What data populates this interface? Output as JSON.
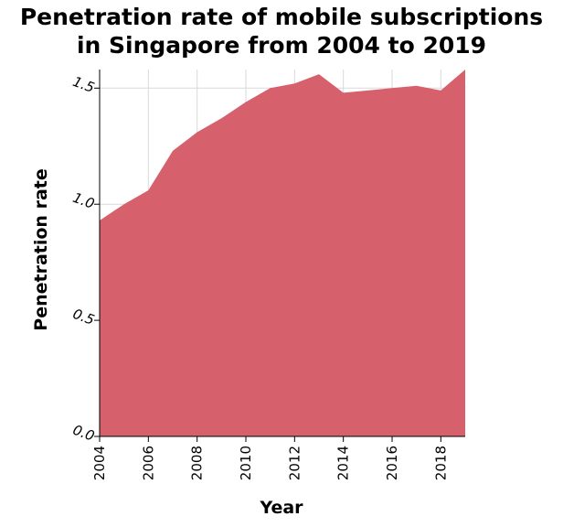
{
  "chart_data": {
    "type": "area",
    "title": "Penetration rate of mobile subscriptions in Singapore from 2004 to 2019",
    "title_lines": [
      "Penetration rate of mobile subscriptions",
      "in Singapore from 2004 to 2019"
    ],
    "xlabel": "Year",
    "ylabel": "Penetration rate",
    "x": [
      2004,
      2005,
      2006,
      2007,
      2008,
      2009,
      2010,
      2011,
      2012,
      2013,
      2014,
      2015,
      2016,
      2017,
      2018,
      2019
    ],
    "series": [
      {
        "values": [
          0.93,
          1.0,
          1.06,
          1.23,
          1.31,
          1.37,
          1.44,
          1.5,
          1.52,
          1.56,
          1.48,
          1.49,
          1.5,
          1.51,
          1.49,
          1.58
        ]
      }
    ],
    "xlim": [
      2004,
      2019
    ],
    "ylim": [
      0.0,
      1.58
    ],
    "xticks": [
      "2004",
      "2006",
      "2008",
      "2010",
      "2012",
      "2014",
      "2016",
      "2018"
    ],
    "yticks": [
      "0.0",
      "0.5",
      "1.0",
      "1.5"
    ],
    "grid": true,
    "colors": {
      "fill": "#d6606b",
      "grid": "#d9d9d9",
      "axis": "#000000"
    }
  }
}
